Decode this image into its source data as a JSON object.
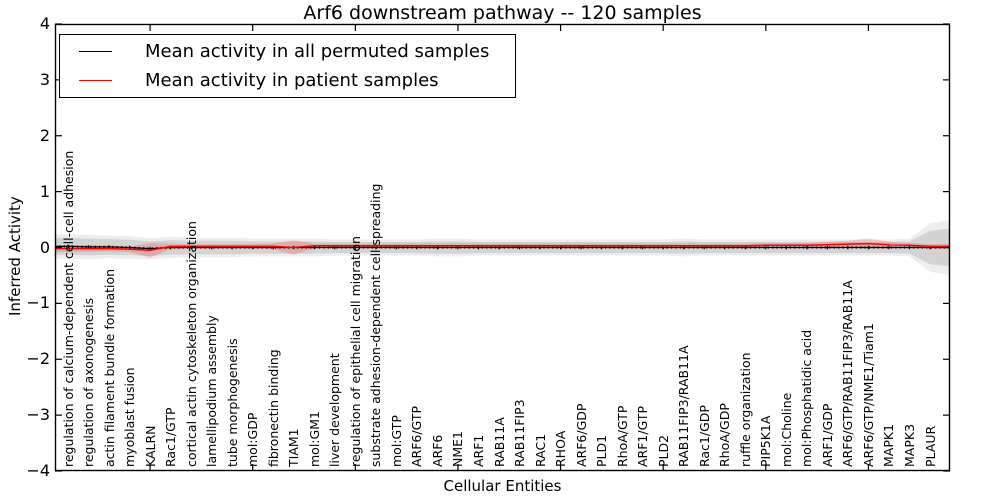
{
  "figure": {
    "title": "Arf6 downstream pathway -- 120 samples"
  },
  "legend": {
    "items": [
      {
        "label": "Mean activity in all permuted samples",
        "color": "#000000"
      },
      {
        "label": "Mean activity in patient samples",
        "color": "#ff0000"
      }
    ]
  },
  "axes": {
    "ylabel": "Inferred Activity",
    "xlabel": "Cellular Entities",
    "ytick_labels": [
      "4",
      "3",
      "2",
      "1",
      "0",
      "−1",
      "−2",
      "−3",
      "−4"
    ]
  },
  "chart_data": {
    "type": "line",
    "title": "Arf6 downstream pathway -- 120 samples",
    "xlabel": "Cellular Entities",
    "ylabel": "Inferred Activity",
    "ylim": [
      -4,
      4
    ],
    "yticks": [
      4,
      3,
      2,
      1,
      0,
      -1,
      -2,
      -3,
      -4
    ],
    "grid": false,
    "legend_position": "upper left",
    "categories": [
      "regulation of calcium-dependent cell-cell adhesion",
      "regulation of axonogenesis",
      "actin filament bundle formation",
      "myoblast fusion",
      "KALRN",
      "Rac1/GTP",
      "cortical actin cytoskeleton organization",
      "lamellipodium assembly",
      "tube morphogenesis",
      "mol:GDP",
      "fibronectin binding",
      "TIAM1",
      "mol:GM1",
      "liver development",
      "regulation of epithelial cell migration",
      "substrate adhesion-dependent cell spreading",
      "mol:GTP",
      "ARF6/GTP",
      "ARF6",
      "NME1",
      "ARF1",
      "RAB11A",
      "RAB11FIP3",
      "RAC1",
      "RHOA",
      "ARF6/GDP",
      "PLD1",
      "RhoA/GTP",
      "ARF1/GTP",
      "PLD2",
      "RAB11FIP3/RAB11A",
      "Rac1/GDP",
      "RhoA/GDP",
      "ruffle organization",
      "PIP5K1A",
      "mol:Choline",
      "mol:Phosphatidic acid",
      "ARF1/GDP",
      "ARF6/GTP/RAB11FIP3/RAB11A",
      "ARF6/GTP/NME1/Tiam1",
      "MAPK1",
      "MAPK3",
      "PLAUR"
    ],
    "series": [
      {
        "name": "Mean activity in all permuted samples",
        "color": "#000000",
        "band_fill": "rgba(0,0,0,0.11)",
        "band_fill_outer": "rgba(0,0,0,0.07)",
        "values": [
          0.02,
          0.01,
          0.01,
          0.0,
          -0.02,
          0.0,
          0.0,
          0.0,
          0.0,
          0.0,
          0.0,
          0.0,
          0.0,
          0.0,
          0.0,
          0.0,
          0.0,
          0.0,
          0.0,
          0.0,
          0.0,
          0.0,
          0.0,
          0.0,
          0.0,
          0.0,
          0.0,
          0.0,
          0.0,
          0.0,
          0.0,
          0.0,
          0.0,
          0.0,
          0.0,
          0.0,
          0.0,
          0.0,
          0.0,
          0.0,
          0.0,
          0.0,
          0.0
        ],
        "band": [
          0.15,
          0.15,
          0.14,
          0.14,
          0.13,
          0.13,
          0.12,
          0.12,
          0.12,
          0.11,
          0.11,
          0.11,
          0.11,
          0.1,
          0.1,
          0.1,
          0.1,
          0.1,
          0.11,
          0.11,
          0.1,
          0.1,
          0.1,
          0.1,
          0.1,
          0.1,
          0.1,
          0.1,
          0.1,
          0.1,
          0.11,
          0.1,
          0.1,
          0.1,
          0.1,
          0.1,
          0.1,
          0.1,
          0.1,
          0.1,
          0.1,
          0.11,
          0.3
        ]
      },
      {
        "name": "Mean activity in patient samples",
        "color": "#ff0000",
        "band_fill": "rgba(255,0,0,0.18)",
        "band_fill_outer": "rgba(255,0,0,0.0)",
        "values": [
          -0.02,
          -0.02,
          -0.02,
          -0.03,
          -0.05,
          0.02,
          0.02,
          0.02,
          0.02,
          0.02,
          0.02,
          0.0,
          0.03,
          0.03,
          0.03,
          0.03,
          0.03,
          0.03,
          0.03,
          0.03,
          0.03,
          0.03,
          0.03,
          0.03,
          0.03,
          0.03,
          0.03,
          0.03,
          0.03,
          0.03,
          0.03,
          0.03,
          0.03,
          0.03,
          0.04,
          0.04,
          0.04,
          0.05,
          0.06,
          0.07,
          0.05,
          0.04,
          0.02
        ],
        "band": [
          0.06,
          0.06,
          0.05,
          0.05,
          0.13,
          0.05,
          0.04,
          0.04,
          0.04,
          0.04,
          0.05,
          0.13,
          0.04,
          0.04,
          0.04,
          0.04,
          0.04,
          0.04,
          0.04,
          0.04,
          0.04,
          0.04,
          0.04,
          0.04,
          0.04,
          0.04,
          0.04,
          0.04,
          0.04,
          0.04,
          0.04,
          0.04,
          0.04,
          0.04,
          0.04,
          0.04,
          0.04,
          0.05,
          0.06,
          0.09,
          0.05,
          0.04,
          0.04
        ]
      }
    ]
  }
}
